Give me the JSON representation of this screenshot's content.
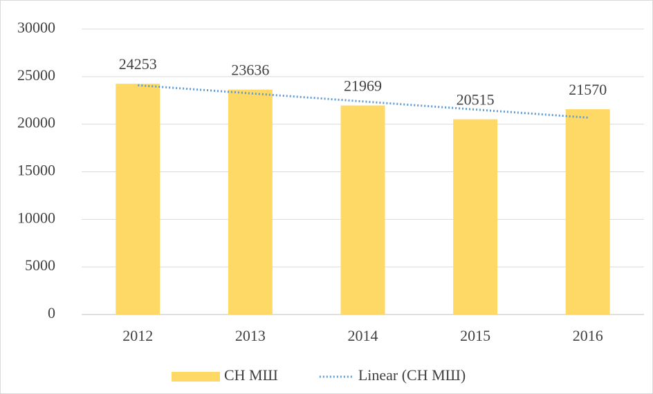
{
  "chart_data": {
    "type": "bar",
    "categories": [
      "2012",
      "2013",
      "2014",
      "2015",
      "2016"
    ],
    "series": [
      {
        "name": "СН МШ",
        "type": "bar",
        "color": "#ffd966",
        "values": [
          24253,
          23636,
          21969,
          20515,
          21570
        ]
      },
      {
        "name": "Linear (СН МШ)",
        "type": "line",
        "color": "#5b9bd5",
        "dash": "dotted",
        "values": [
          24090,
          23240,
          22390,
          21540,
          20690
        ]
      }
    ],
    "ylim": [
      0,
      30000
    ],
    "yticks": [
      0,
      5000,
      10000,
      15000,
      20000,
      25000,
      30000
    ],
    "grid": true,
    "legend": "bottom"
  }
}
